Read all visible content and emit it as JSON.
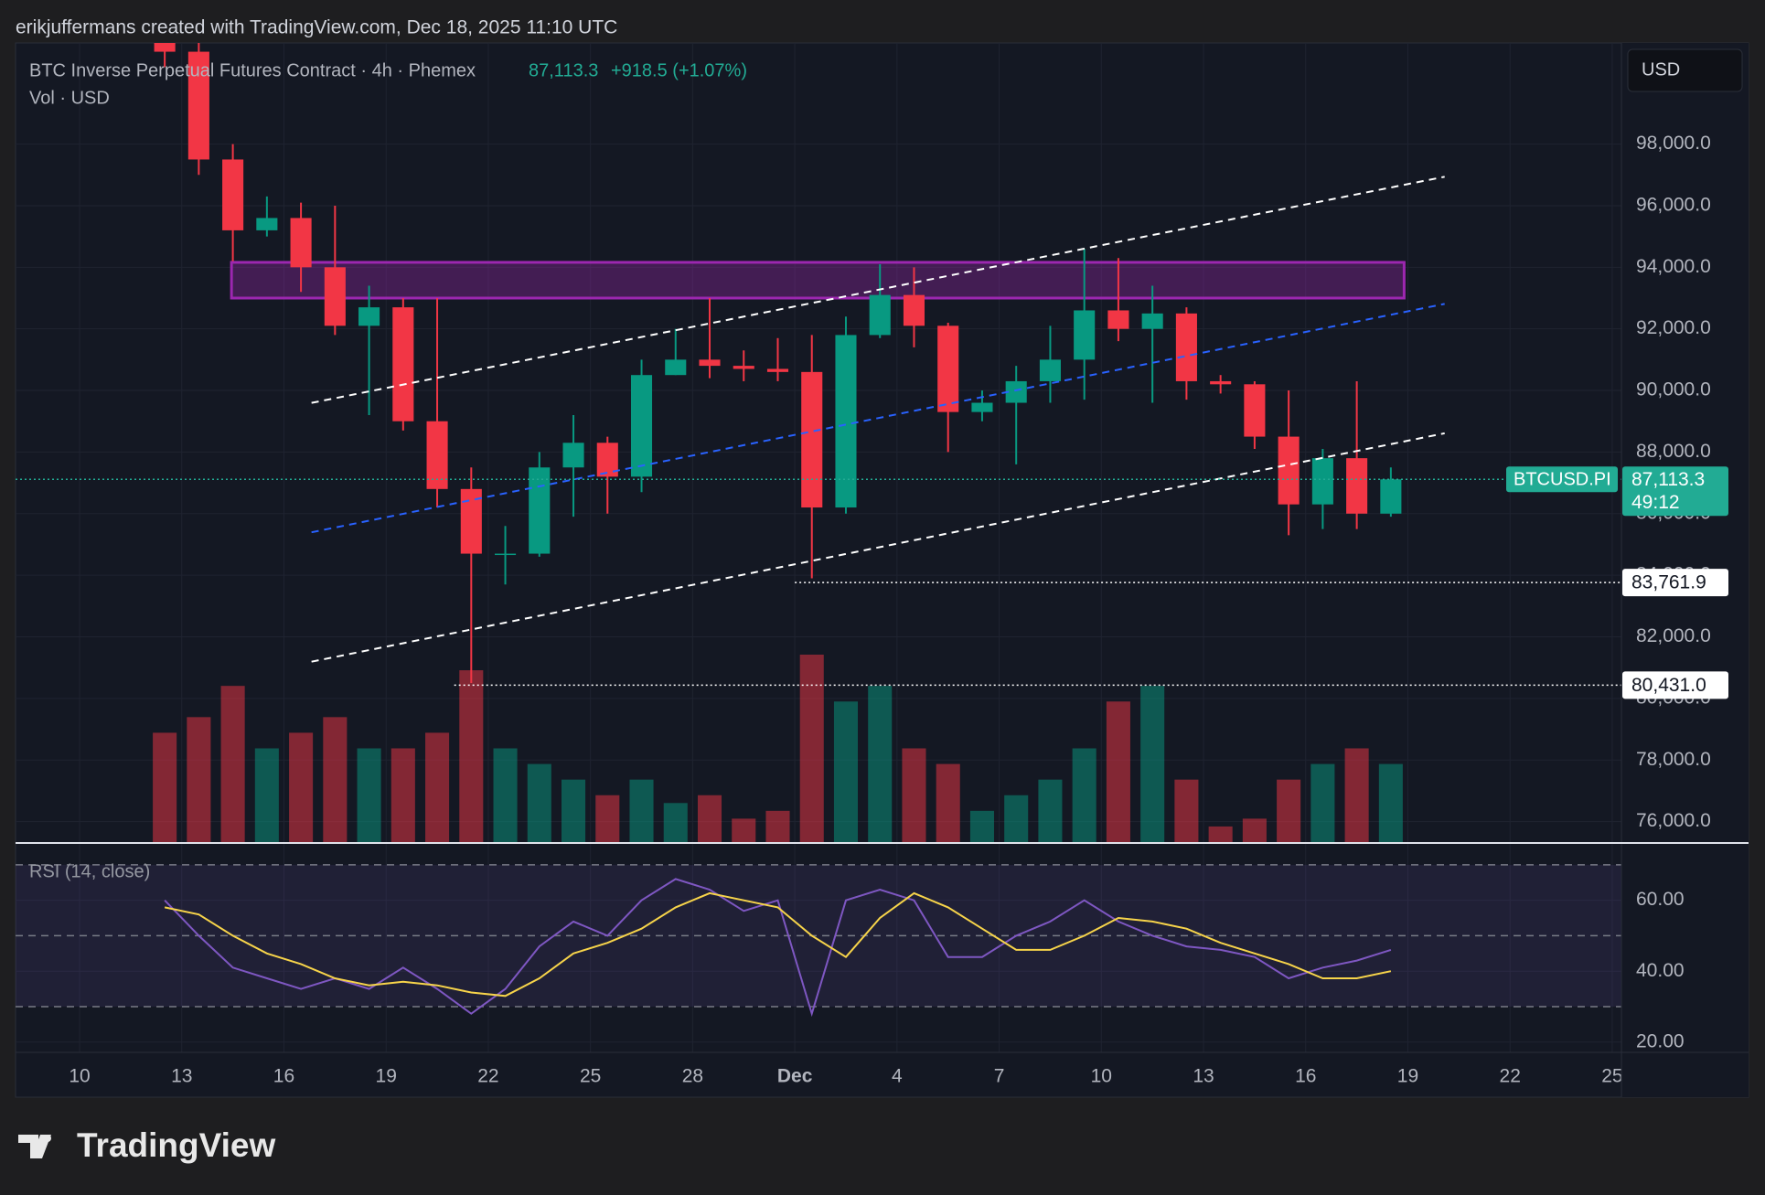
{
  "header": {
    "credit": "erikjuffermans created with TradingView.com, Dec 18, 2025 11:10 UTC",
    "symbol": "BTC Inverse Perpetual Futures Contract · 4h · Phemex",
    "last": "87,113.3",
    "change": "+918.5 (+1.07%)",
    "volume_legend": "Vol · USD",
    "currency": "USD",
    "brand": "TradingView"
  },
  "chart_data": [
    {
      "type": "candlestick",
      "x": [
        316.5,
        317.5,
        318.5,
        319.5,
        320.5,
        321.5,
        322.5,
        323.5,
        324.5,
        325.5,
        326.5,
        327.5,
        328.5,
        329.5,
        330.5,
        331.5,
        332.5,
        333.5,
        334.5,
        335.5,
        336.5,
        337.5,
        338.5,
        339.5,
        340.5,
        341.5,
        342.5,
        343.5,
        344.5,
        345.5,
        346.5,
        347.5,
        348.5,
        349.5,
        350.5,
        351.5,
        352.5
      ],
      "open": [
        102000,
        101000,
        97500,
        95200,
        95600,
        94000,
        92100,
        92700,
        89000,
        86800,
        84700,
        84700,
        87500,
        88300,
        87200,
        90500,
        91000,
        90800,
        90700,
        90600,
        86200,
        91800,
        93100,
        92100,
        89300,
        89600,
        90300,
        91000,
        92600,
        92000,
        92500,
        90300,
        90200,
        88500,
        86300,
        87800,
        86000
      ],
      "high": [
        103000,
        101500,
        98000,
        96300,
        96100,
        96000,
        93400,
        93000,
        93000,
        87500,
        85600,
        88000,
        89200,
        88500,
        91000,
        92000,
        93000,
        91300,
        91700,
        91800,
        92400,
        94100,
        94000,
        92200,
        90000,
        90800,
        92100,
        94600,
        94300,
        93400,
        92700,
        90500,
        90300,
        90000,
        88100,
        90300,
        87500
      ],
      "low": [
        100500,
        97000,
        94200,
        95000,
        93200,
        91800,
        89200,
        88700,
        86200,
        80500,
        83700,
        84600,
        85900,
        86000,
        86700,
        90500,
        90400,
        90300,
        90300,
        83900,
        86000,
        91700,
        91400,
        88000,
        89000,
        87600,
        89600,
        89700,
        91600,
        89600,
        89700,
        89900,
        88100,
        85300,
        85500,
        85500,
        85900
      ],
      "close": [
        101000,
        97500,
        95200,
        95600,
        94000,
        92100,
        92700,
        89000,
        86800,
        84700,
        84700,
        87500,
        88300,
        87200,
        90500,
        91000,
        90800,
        90700,
        90600,
        86200,
        91800,
        93100,
        92100,
        89300,
        89600,
        90300,
        91000,
        92600,
        92000,
        92500,
        90300,
        90200,
        88500,
        86300,
        87800,
        86000,
        87113.3
      ],
      "volume": [
        70,
        80,
        100,
        60,
        70,
        80,
        60,
        60,
        70,
        110,
        60,
        50,
        40,
        30,
        40,
        25,
        30,
        15,
        20,
        120,
        90,
        100,
        60,
        50,
        20,
        30,
        40,
        60,
        90,
        100,
        40,
        10,
        15,
        40,
        50,
        60,
        50
      ],
      "up_color": "#089981",
      "down_color": "#f23645",
      "grid": true,
      "xlim": [
        312.12,
        359.27
      ],
      "xticks": [
        {
          "value": 314,
          "label": "10"
        },
        {
          "value": 317,
          "label": "13"
        },
        {
          "value": 320,
          "label": "16"
        },
        {
          "value": 323,
          "label": "19"
        },
        {
          "value": 326,
          "label": "22"
        },
        {
          "value": 329,
          "label": "25"
        },
        {
          "value": 332,
          "label": "28"
        },
        {
          "value": 335,
          "label": "Dec"
        },
        {
          "value": 338,
          "label": "4"
        },
        {
          "value": 341,
          "label": "7"
        },
        {
          "value": 344,
          "label": "10"
        },
        {
          "value": 347,
          "label": "13"
        },
        {
          "value": 350,
          "label": "16"
        },
        {
          "value": 353,
          "label": "19"
        },
        {
          "value": 356,
          "label": "22"
        },
        {
          "value": 359,
          "label": "25"
        }
      ],
      "ylim": [
        75334,
        101284
      ],
      "yticks": [
        {
          "value": 76000,
          "label": "76,000.0"
        },
        {
          "value": 78000,
          "label": "78,000.0"
        },
        {
          "value": 80000,
          "label": "80,000.0"
        },
        {
          "value": 82000,
          "label": "82,000.0"
        },
        {
          "value": 84000,
          "label": "84,000.0"
        },
        {
          "value": 86000,
          "label": "86,000.0"
        },
        {
          "value": 88000,
          "label": "88,000.0"
        },
        {
          "value": 90000,
          "label": "90,000.0"
        },
        {
          "value": 92000,
          "label": "92,000.0"
        },
        {
          "value": 94000,
          "label": "94,000.0"
        },
        {
          "value": 96000,
          "label": "96,000.0"
        },
        {
          "value": 98000,
          "label": "98,000.0"
        }
      ],
      "zone": {
        "x": [
          318.46,
          352.89
        ],
        "y": [
          93000,
          94160
        ],
        "color": "#9c27b0"
      },
      "lines": [
        {
          "x": [
            320.81,
            354.08
          ],
          "y": [
            89596,
            96940
          ],
          "color": "#ffffff",
          "dashed": true
        },
        {
          "x": [
            320.81,
            354.08
          ],
          "y": [
            85394,
            92811
          ],
          "color": "#2962ff",
          "dashed": true
        },
        {
          "x": [
            320.81,
            354.08
          ],
          "y": [
            81192,
            88609
          ],
          "color": "#ffffff",
          "dashed": true
        }
      ],
      "price_lines": [
        {
          "value": 83761.9,
          "label": "83,761.9",
          "from": 335.0
        },
        {
          "value": 80431.0,
          "label": "80,431.0",
          "from": 325.0
        }
      ],
      "last_price": {
        "value": 87113.3,
        "label": "87,113.3",
        "symbol": "BTCUSD.PI",
        "countdown": "49:12",
        "color": "#22ab94"
      }
    },
    {
      "type": "line",
      "title": "RSI (14, close)",
      "x": [
        316.5,
        317.5,
        318.5,
        319.5,
        320.5,
        321.5,
        322.5,
        323.5,
        324.5,
        325.5,
        326.5,
        327.5,
        328.5,
        329.5,
        330.5,
        331.5,
        332.5,
        333.5,
        334.5,
        335.5,
        336.5,
        337.5,
        338.5,
        339.5,
        340.5,
        341.5,
        342.5,
        343.5,
        344.5,
        345.5,
        346.5,
        347.5,
        348.5,
        349.5,
        350.5,
        351.5,
        352.5
      ],
      "series": [
        {
          "color": "#7e57c2",
          "values": [
            60,
            50,
            41,
            38,
            35,
            38,
            35,
            41,
            35,
            28,
            35,
            47,
            54,
            50,
            60,
            66,
            63,
            57,
            60,
            28,
            60,
            63,
            60,
            44,
            44,
            50,
            54,
            60,
            54,
            50,
            47,
            46,
            44,
            38,
            41,
            43,
            46
          ]
        },
        {
          "color": "#f7d44a",
          "values": [
            58,
            56,
            50,
            45,
            42,
            38,
            36,
            37,
            36,
            34,
            33,
            38,
            45,
            48,
            52,
            58,
            62,
            60,
            58,
            50,
            44,
            55,
            62,
            58,
            52,
            46,
            46,
            50,
            55,
            54,
            52,
            48,
            45,
            42,
            38,
            38,
            40
          ]
        }
      ],
      "xlim": [
        312.12,
        359.27
      ],
      "ylim": [
        17.1,
        75.9
      ],
      "yticks": [
        {
          "value": 20,
          "label": "20.00"
        },
        {
          "value": 40,
          "label": "40.00"
        },
        {
          "value": 60,
          "label": "60.00"
        }
      ],
      "bands": [
        30,
        50,
        70
      ],
      "band_color": "#7e57c2"
    }
  ]
}
